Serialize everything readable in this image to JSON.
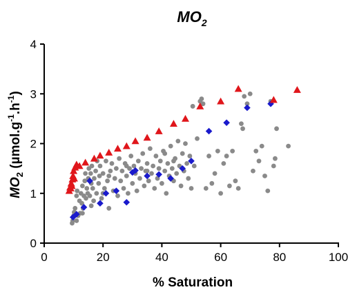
{
  "chart_data": {
    "type": "scatter",
    "title_main": "MO",
    "title_sub": "2",
    "xlabel": "% Saturation",
    "ylabel_main": "MO",
    "ylabel_sub": "2",
    "ylabel_units_a": " (µmol.g",
    "ylabel_sup1": "-1",
    "ylabel_units_b": ".h",
    "ylabel_sup2": "-1",
    "ylabel_units_c": ")",
    "xlim": [
      0,
      100
    ],
    "ylim": [
      0,
      4
    ],
    "xticks": [
      "0",
      "20",
      "40",
      "60",
      "80",
      "100"
    ],
    "yticks": [
      "0",
      "1",
      "2",
      "3",
      "4"
    ],
    "grid": false,
    "legend": "none",
    "series": [
      {
        "marker": "circle",
        "color": "#8a8a8a",
        "points": [
          [
            9.5,
            0.4
          ],
          [
            9.7,
            0.45
          ],
          [
            10,
            0.55
          ],
          [
            10.2,
            0.62
          ],
          [
            10.5,
            0.7
          ],
          [
            11,
            0.95
          ],
          [
            11.2,
            1.05
          ],
          [
            11.5,
            0.55
          ],
          [
            12,
            0.85
          ],
          [
            12.2,
            0.6
          ],
          [
            12.5,
            1.0
          ],
          [
            12.8,
            0.8
          ],
          [
            13,
            1.15
          ],
          [
            13.2,
            0.7
          ],
          [
            13.5,
            0.95
          ],
          [
            13.8,
            1.25
          ],
          [
            14,
            1.4
          ],
          [
            14.2,
            0.9
          ],
          [
            14.5,
            1.1
          ],
          [
            14.8,
            1.0
          ],
          [
            15,
            1.3
          ],
          [
            15.2,
            1.5
          ],
          [
            15.5,
            0.95
          ],
          [
            15.8,
            1.4
          ],
          [
            16,
            1.2
          ],
          [
            16.2,
            1.55
          ],
          [
            16.5,
            1.1
          ],
          [
            16.8,
            0.85
          ],
          [
            17,
            1.3
          ],
          [
            17.5,
            1.45
          ],
          [
            17.8,
            1.0
          ],
          [
            18,
            1.65
          ],
          [
            18.5,
            1.2
          ],
          [
            18.8,
            1.35
          ],
          [
            19,
            1.55
          ],
          [
            19.5,
            0.9
          ],
          [
            20,
            1.4
          ],
          [
            20.5,
            1.1
          ],
          [
            21,
            1.65
          ],
          [
            21.5,
            1.25
          ],
          [
            22,
            0.7
          ],
          [
            22.5,
            1.45
          ],
          [
            23,
            1.6
          ],
          [
            23.5,
            1.05
          ],
          [
            24,
            1.3
          ],
          [
            24.5,
            1.5
          ],
          [
            25,
            0.95
          ],
          [
            25.5,
            1.7
          ],
          [
            26,
            1.25
          ],
          [
            26.5,
            1.45
          ],
          [
            27,
            1.1
          ],
          [
            27.5,
            1.6
          ],
          [
            28,
            1.35
          ],
          [
            28.5,
            1.0
          ],
          [
            29,
            1.5
          ],
          [
            29.5,
            1.75
          ],
          [
            30,
            1.2
          ],
          [
            30.5,
            1.55
          ],
          [
            31,
            1.4
          ],
          [
            31.5,
            1.05
          ],
          [
            32,
            1.65
          ],
          [
            32.5,
            1.3
          ],
          [
            33,
            1.5
          ],
          [
            33.5,
            1.8
          ],
          [
            34,
            1.15
          ],
          [
            34.5,
            1.45
          ],
          [
            35,
            1.6
          ],
          [
            35.5,
            1.25
          ],
          [
            36,
            1.9
          ],
          [
            36.5,
            1.4
          ],
          [
            37,
            1.55
          ],
          [
            37.5,
            1.1
          ],
          [
            38,
            1.75
          ],
          [
            38.5,
            1.3
          ],
          [
            39,
            1.5
          ],
          [
            39.5,
            1.65
          ],
          [
            40,
            1.2
          ],
          [
            40.5,
            1.85
          ],
          [
            41,
            1.45
          ],
          [
            41.5,
            1.0
          ],
          [
            42,
            1.6
          ],
          [
            42.5,
            1.35
          ],
          [
            43,
            1.95
          ],
          [
            43.5,
            1.5
          ],
          [
            44,
            1.25
          ],
          [
            44.5,
            1.7
          ],
          [
            45,
            1.4
          ],
          [
            45.5,
            2.05
          ],
          [
            46,
            1.55
          ],
          [
            46.5,
            1.15
          ],
          [
            47,
            1.8
          ],
          [
            47.5,
            1.45
          ],
          [
            48,
            2.0
          ],
          [
            48.5,
            1.6
          ],
          [
            49,
            1.3
          ],
          [
            49.5,
            1.75
          ],
          [
            50,
            1.1
          ],
          [
            51,
            1.55
          ],
          [
            52,
            2.1
          ],
          [
            53,
            2.85
          ],
          [
            53.5,
            2.9
          ],
          [
            54,
            2.8
          ],
          [
            55,
            1.1
          ],
          [
            56,
            1.75
          ],
          [
            57,
            1.2
          ],
          [
            58,
            1.4
          ],
          [
            59,
            1.85
          ],
          [
            60,
            1.0
          ],
          [
            61,
            1.6
          ],
          [
            62,
            1.75
          ],
          [
            63,
            1.15
          ],
          [
            64,
            1.85
          ],
          [
            65,
            1.25
          ],
          [
            66,
            1.1
          ],
          [
            67,
            2.4
          ],
          [
            67.5,
            2.3
          ],
          [
            68,
            2.95
          ],
          [
            69,
            2.8
          ],
          [
            70,
            3.0
          ],
          [
            71,
            1.45
          ],
          [
            72,
            1.85
          ],
          [
            73,
            1.65
          ],
          [
            74,
            1.95
          ],
          [
            75,
            1.35
          ],
          [
            76,
            1.05
          ],
          [
            77,
            2.85
          ],
          [
            78,
            1.55
          ],
          [
            78.5,
            1.7
          ],
          [
            79,
            2.3
          ],
          [
            83,
            1.95
          ],
          [
            50.5,
            2.75
          ],
          [
            44,
            1.65
          ],
          [
            41,
            1.8
          ],
          [
            35,
            1.45
          ],
          [
            28,
            1.55
          ],
          [
            22,
            1.35
          ],
          [
            20,
            1.0
          ],
          [
            16,
            0.75
          ],
          [
            13,
            0.6
          ],
          [
            11,
            0.45
          ]
        ]
      },
      {
        "marker": "diamond",
        "color": "#1a1acc",
        "points": [
          [
            9.8,
            0.52
          ],
          [
            11,
            0.58
          ],
          [
            13.5,
            0.72
          ],
          [
            15.5,
            1.25
          ],
          [
            19,
            0.8
          ],
          [
            21,
            1.0
          ],
          [
            24.5,
            1.05
          ],
          [
            28,
            0.82
          ],
          [
            30,
            1.42
          ],
          [
            31,
            1.46
          ],
          [
            35,
            1.35
          ],
          [
            39,
            1.38
          ],
          [
            43,
            1.3
          ],
          [
            47,
            1.5
          ],
          [
            50,
            1.65
          ],
          [
            56,
            2.25
          ],
          [
            62,
            2.42
          ],
          [
            69,
            2.72
          ],
          [
            77,
            2.8
          ]
        ]
      },
      {
        "marker": "triangle",
        "color": "#e0161b",
        "points": [
          [
            8.5,
            1.05
          ],
          [
            8.8,
            1.12
          ],
          [
            9,
            1.1
          ],
          [
            9.2,
            1.2
          ],
          [
            9.4,
            1.15
          ],
          [
            9.6,
            1.28
          ],
          [
            9.8,
            1.35
          ],
          [
            10,
            1.45
          ],
          [
            10.2,
            1.3
          ],
          [
            10.5,
            1.52
          ],
          [
            11,
            1.58
          ],
          [
            12,
            1.55
          ],
          [
            14,
            1.62
          ],
          [
            17,
            1.7
          ],
          [
            19,
            1.76
          ],
          [
            22,
            1.82
          ],
          [
            25,
            1.9
          ],
          [
            28,
            1.95
          ],
          [
            31,
            2.05
          ],
          [
            35,
            2.12
          ],
          [
            39,
            2.25
          ],
          [
            44,
            2.4
          ],
          [
            48,
            2.5
          ],
          [
            53,
            2.75
          ],
          [
            60,
            2.85
          ],
          [
            66,
            3.1
          ],
          [
            78,
            2.88
          ],
          [
            86,
            3.08
          ]
        ]
      }
    ]
  }
}
